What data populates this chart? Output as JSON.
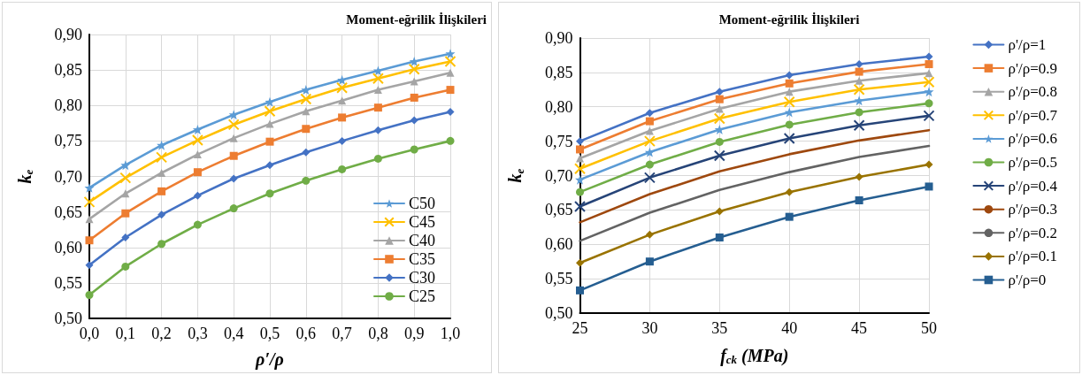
{
  "chart_data": [
    {
      "type": "line",
      "title": "Moment-eğrilik İlişkileri",
      "xlabel": "ρ′/ρ",
      "ylabel": "k$_{e}$",
      "x": [
        0,
        0.1,
        0.2,
        0.3,
        0.4,
        0.5,
        0.6,
        0.7,
        0.8,
        0.9,
        1.0
      ],
      "xlim": [
        0,
        1
      ],
      "xticks": [
        {
          "value": 0,
          "label": "0,0"
        },
        {
          "value": 0.1,
          "label": "0,1"
        },
        {
          "value": 0.2,
          "label": "0,2"
        },
        {
          "value": 0.3,
          "label": "0,3"
        },
        {
          "value": 0.4,
          "label": "0,4"
        },
        {
          "value": 0.5,
          "label": "0,5"
        },
        {
          "value": 0.6,
          "label": "0,6"
        },
        {
          "value": 0.7,
          "label": "0,7"
        },
        {
          "value": 0.8,
          "label": "0,8"
        },
        {
          "value": 0.9,
          "label": "0,9"
        },
        {
          "value": 1,
          "label": "1,0"
        }
      ],
      "ylim": [
        0.5,
        0.9
      ],
      "yticks": [
        {
          "value": 0.5,
          "label": "0,50"
        },
        {
          "value": 0.55,
          "label": "0,55"
        },
        {
          "value": 0.6,
          "label": "0,60"
        },
        {
          "value": 0.65,
          "label": "0,65"
        },
        {
          "value": 0.7,
          "label": "0,70"
        },
        {
          "value": 0.75,
          "label": "0,75"
        },
        {
          "value": 0.8,
          "label": "0,80"
        },
        {
          "value": 0.85,
          "label": "0,85"
        },
        {
          "value": 0.9,
          "label": "0,90"
        }
      ],
      "grid": true,
      "legend": "bottom right",
      "series": [
        {
          "name": "C50",
          "color": "#5b9bd5",
          "marker": "star",
          "values": [
            0.684,
            0.716,
            0.744,
            0.766,
            0.787,
            0.805,
            0.822,
            0.836,
            0.849,
            0.862,
            0.873
          ]
        },
        {
          "name": "C45",
          "color": "#ffc000",
          "marker": "cross",
          "values": [
            0.664,
            0.698,
            0.727,
            0.751,
            0.773,
            0.792,
            0.809,
            0.825,
            0.838,
            0.851,
            0.862
          ]
        },
        {
          "name": "C40",
          "color": "#a5a5a5",
          "marker": "triangle",
          "values": [
            0.64,
            0.676,
            0.705,
            0.731,
            0.754,
            0.774,
            0.792,
            0.807,
            0.822,
            0.834,
            0.846
          ]
        },
        {
          "name": "C35",
          "color": "#ed7d31",
          "marker": "square",
          "values": [
            0.61,
            0.648,
            0.679,
            0.706,
            0.729,
            0.749,
            0.767,
            0.783,
            0.797,
            0.811,
            0.822
          ]
        },
        {
          "name": "C30",
          "color": "#4472c4",
          "marker": "diamond",
          "values": [
            0.575,
            0.614,
            0.646,
            0.673,
            0.697,
            0.716,
            0.734,
            0.75,
            0.765,
            0.779,
            0.791
          ]
        },
        {
          "name": "C25",
          "color": "#70ad47",
          "marker": "circle",
          "values": [
            0.533,
            0.573,
            0.605,
            0.632,
            0.655,
            0.676,
            0.694,
            0.71,
            0.725,
            0.738,
            0.75
          ]
        }
      ]
    },
    {
      "type": "line",
      "title": "Moment-eğrilik İlişkileri",
      "xlabel": "f$_{ck}$ (MPa)",
      "ylabel": "k$_{e}$",
      "x": [
        25,
        30,
        35,
        40,
        45,
        50
      ],
      "xlim": [
        25,
        50
      ],
      "xticks": [
        25,
        30,
        35,
        40,
        45,
        50
      ],
      "ylim": [
        0.5,
        0.9
      ],
      "yticks": [
        {
          "value": 0.5,
          "label": "0,50"
        },
        {
          "value": 0.55,
          "label": "0,55"
        },
        {
          "value": 0.6,
          "label": "0,60"
        },
        {
          "value": 0.65,
          "label": "0,65"
        },
        {
          "value": 0.7,
          "label": "0,70"
        },
        {
          "value": 0.75,
          "label": "0,75"
        },
        {
          "value": 0.8,
          "label": "0,80"
        },
        {
          "value": 0.85,
          "label": "0,85"
        },
        {
          "value": 0.9,
          "label": "0,90"
        }
      ],
      "grid": true,
      "legend": "right",
      "series": [
        {
          "name": "ρ'/ρ=1",
          "color": "#4472c4",
          "marker": "diamond",
          "values": [
            0.75,
            0.791,
            0.822,
            0.846,
            0.862,
            0.873
          ]
        },
        {
          "name": "ρ'/ρ=0.9",
          "color": "#ed7d31",
          "marker": "square",
          "values": [
            0.738,
            0.779,
            0.811,
            0.834,
            0.851,
            0.862
          ]
        },
        {
          "name": "ρ'/ρ=0.8",
          "color": "#a5a5a5",
          "marker": "triangle",
          "values": [
            0.725,
            0.765,
            0.797,
            0.822,
            0.838,
            0.849
          ]
        },
        {
          "name": "ρ'/ρ=0.7",
          "color": "#ffc000",
          "marker": "cross",
          "values": [
            0.71,
            0.75,
            0.783,
            0.807,
            0.825,
            0.836
          ]
        },
        {
          "name": "ρ'/ρ=0.6",
          "color": "#5b9bd5",
          "marker": "star",
          "values": [
            0.694,
            0.734,
            0.767,
            0.792,
            0.809,
            0.822
          ]
        },
        {
          "name": "ρ'/ρ=0.5",
          "color": "#70ad47",
          "marker": "circle",
          "values": [
            0.676,
            0.716,
            0.749,
            0.774,
            0.792,
            0.805
          ]
        },
        {
          "name": "ρ'/ρ=0.4",
          "color": "#264478",
          "marker": "cross",
          "values": [
            0.655,
            0.697,
            0.729,
            0.754,
            0.773,
            0.787
          ]
        },
        {
          "name": "ρ'/ρ=0.3",
          "color": "#9e480e",
          "marker": "none",
          "values": [
            0.632,
            0.673,
            0.706,
            0.731,
            0.751,
            0.766
          ]
        },
        {
          "name": "ρ'/ρ=0.2",
          "color": "#636363",
          "marker": "none",
          "values": [
            0.605,
            0.646,
            0.679,
            0.705,
            0.727,
            0.743
          ]
        },
        {
          "name": "ρ'/ρ=0.1",
          "color": "#997300",
          "marker": "diamond",
          "values": [
            0.573,
            0.614,
            0.648,
            0.676,
            0.698,
            0.716
          ]
        },
        {
          "name": "ρ'/ρ=0",
          "color": "#255e91",
          "marker": "square",
          "values": [
            0.533,
            0.575,
            0.61,
            0.64,
            0.664,
            0.684
          ]
        }
      ]
    }
  ]
}
